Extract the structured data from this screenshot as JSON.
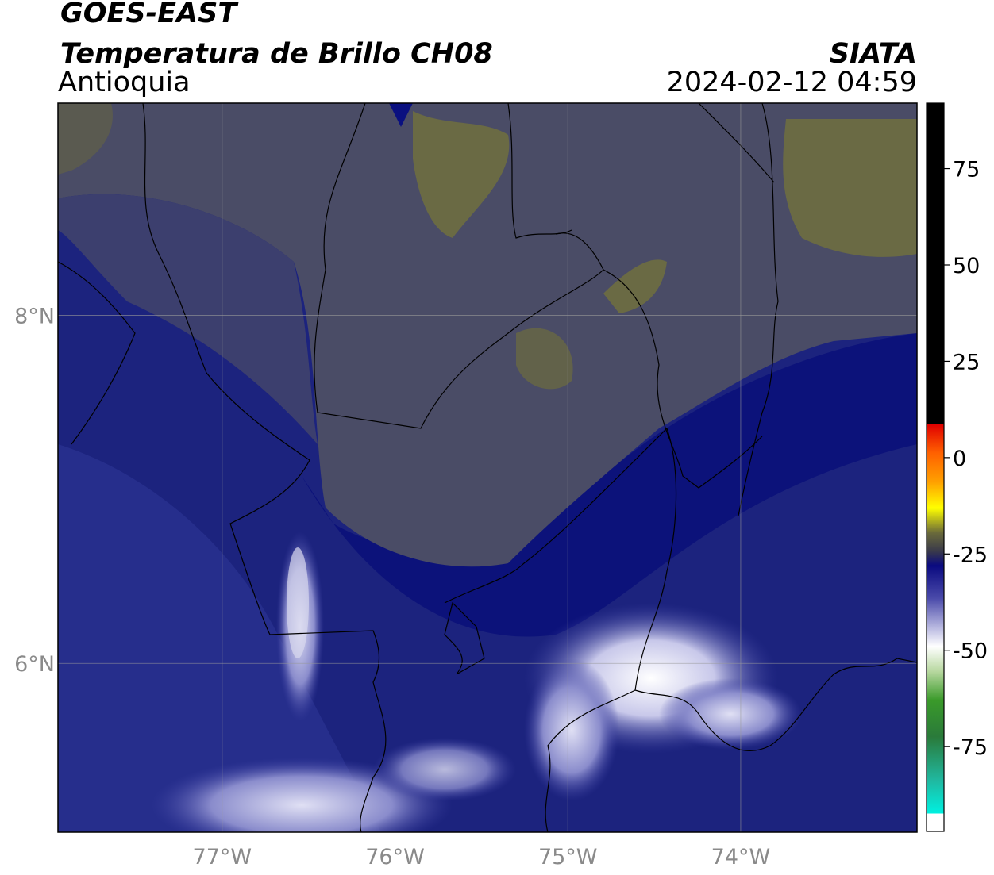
{
  "header": {
    "satellite": "GOES-EAST",
    "product": "Temperatura de Brillo CH08",
    "region": "Antioquia",
    "source": "SIATA",
    "datetime": "2024-02-12 04:59"
  },
  "map": {
    "xlim": [
      -77.95,
      -72.98
    ],
    "ylim": [
      5.03,
      9.22
    ],
    "xticks": [
      {
        "value": -77,
        "label": "77°W"
      },
      {
        "value": -76,
        "label": "76°W"
      },
      {
        "value": -75,
        "label": "75°W"
      },
      {
        "value": -74,
        "label": "74°W"
      }
    ],
    "yticks": [
      {
        "value": 8,
        "label": "8°N"
      },
      {
        "value": 6,
        "label": "6°N"
      }
    ],
    "grid": true
  },
  "colorbar": {
    "ylim": [
      -97,
      92
    ],
    "yticks": [
      75,
      50,
      25,
      0,
      -25,
      -50,
      -75
    ]
  }
}
